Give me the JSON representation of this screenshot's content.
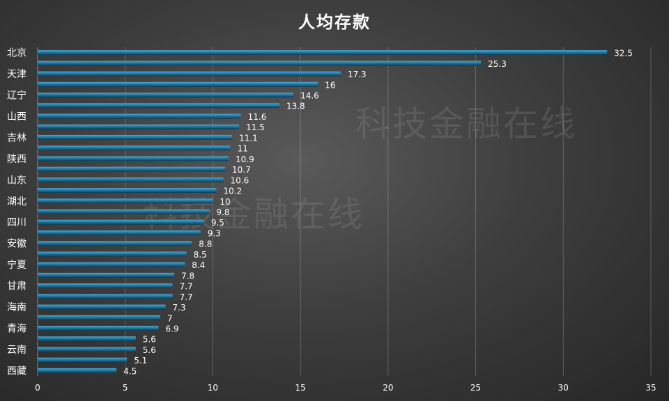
{
  "chart_data": {
    "type": "bar",
    "orientation": "horizontal",
    "title": "人均存款",
    "categories": [
      "北京",
      "",
      "天津",
      "",
      "辽宁",
      "",
      "山西",
      "",
      "吉林",
      "",
      "陕西",
      "",
      "山东",
      "",
      "湖北",
      "",
      "四川",
      "",
      "安徽",
      "",
      "宁夏",
      "",
      "甘肃",
      "",
      "海南",
      "",
      "青海",
      "",
      "云南",
      "",
      "西藏"
    ],
    "values": [
      32.5,
      25.3,
      17.3,
      16,
      14.6,
      13.8,
      11.6,
      11.5,
      11.1,
      11,
      10.9,
      10.7,
      10.6,
      10.2,
      10,
      9.8,
      9.5,
      9.3,
      8.8,
      8.5,
      8.4,
      7.8,
      7.7,
      7.7,
      7.3,
      7,
      6.9,
      5.6,
      5.6,
      5.1,
      4.5
    ],
    "xlim": [
      0,
      35
    ],
    "xticks": [
      0,
      5,
      10,
      15,
      20,
      25,
      30,
      35
    ],
    "xlabel": "",
    "ylabel": "",
    "grid": true,
    "bar_color": "#1f6e94"
  },
  "watermark": "科技金融在线"
}
